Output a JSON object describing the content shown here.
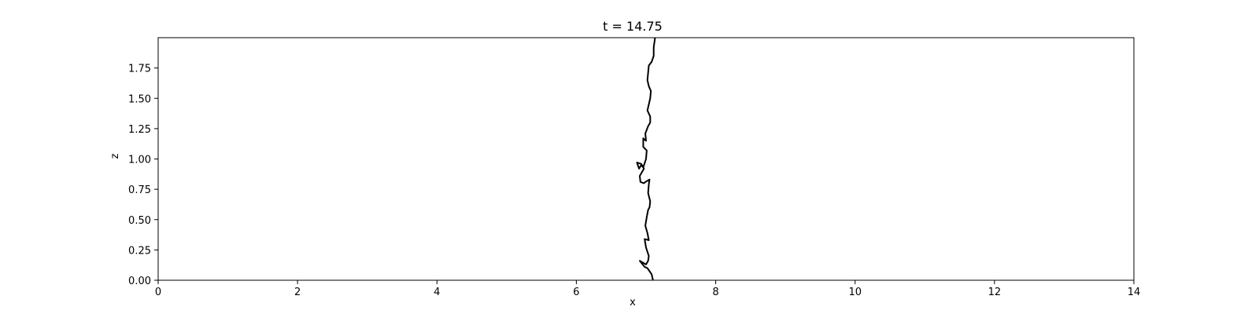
{
  "chart_data": {
    "type": "line",
    "title": "t = 14.75",
    "xlabel": "x",
    "ylabel": "z",
    "xlim": [
      0,
      14
    ],
    "ylim": [
      0,
      2
    ],
    "xticks": [
      0,
      2,
      4,
      6,
      8,
      10,
      12,
      14
    ],
    "xtick_labels": [
      "0",
      "2",
      "4",
      "6",
      "8",
      "10",
      "12",
      "14"
    ],
    "yticks": [
      0,
      0.25,
      0.5,
      0.75,
      1.0,
      1.25,
      1.5,
      1.75
    ],
    "ytick_labels": [
      "0.00",
      "0.25",
      "0.50",
      "0.75",
      "1.00",
      "1.25",
      "1.50",
      "1.75"
    ],
    "grid": false,
    "legend": "none",
    "line_color": "#000000",
    "series": [
      {
        "x": [
          7.1,
          7.08,
          7.02,
          6.98,
          6.91,
          7.0,
          7.03,
          7.04,
          7.0,
          6.98,
          7.04,
          7.02,
          6.99,
          7.01,
          7.03,
          7.05,
          7.06,
          7.03,
          7.04,
          7.05,
          6.99,
          6.97,
          6.92,
          6.91,
          6.97,
          6.93,
          6.87,
          6.9,
          6.93,
          6.96,
          7.0,
          7.01,
          6.96,
          6.96,
          7.0,
          6.99,
          7.03,
          7.06,
          7.06,
          7.02,
          7.04,
          7.06,
          7.07,
          7.04,
          7.02,
          7.03,
          7.04,
          7.08,
          7.11,
          7.11,
          7.13
        ],
        "y": [
          0.0,
          0.05,
          0.1,
          0.11,
          0.16,
          0.13,
          0.16,
          0.2,
          0.27,
          0.34,
          0.33,
          0.39,
          0.45,
          0.52,
          0.58,
          0.6,
          0.65,
          0.72,
          0.79,
          0.83,
          0.81,
          0.8,
          0.81,
          0.86,
          0.92,
          0.96,
          0.97,
          0.92,
          0.95,
          0.93,
          1.0,
          1.07,
          1.1,
          1.17,
          1.15,
          1.21,
          1.27,
          1.3,
          1.35,
          1.4,
          1.45,
          1.5,
          1.56,
          1.6,
          1.65,
          1.71,
          1.77,
          1.8,
          1.85,
          1.92,
          2.0
        ]
      }
    ]
  }
}
